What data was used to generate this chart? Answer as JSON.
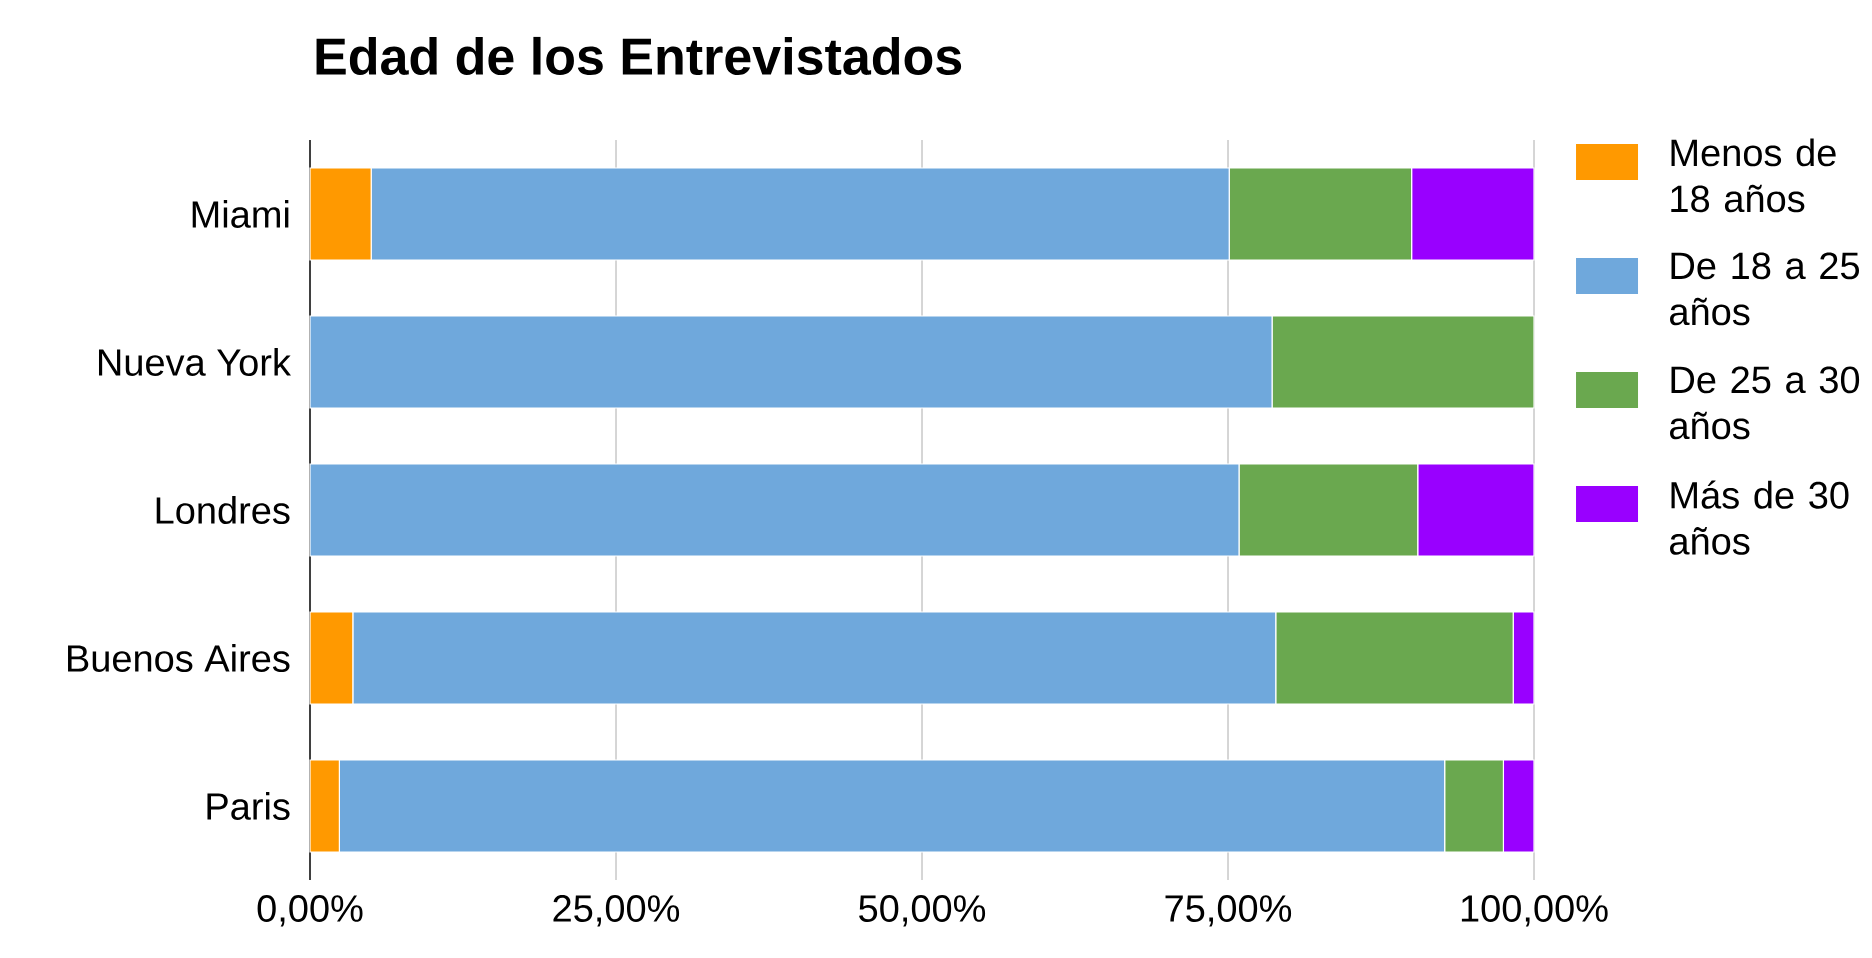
{
  "chart_data": {
    "type": "bar",
    "orientation": "horizontal",
    "stacked": true,
    "title": "Edad de los Entrevistados",
    "categories": [
      "Miami",
      "Nueva York",
      "Londres",
      "Buenos Aires",
      "Paris"
    ],
    "series": [
      {
        "name": "Menos de 18 años",
        "color": "#ff9900",
        "values": [
          5,
          0,
          0,
          3.5,
          2.4
        ]
      },
      {
        "name": "De 18 a 25 años",
        "color": "#6fa8dc",
        "values": [
          70.1,
          78.6,
          75.9,
          75.4,
          90.3
        ]
      },
      {
        "name": "De 25 a 30 años",
        "color": "#6aa84f",
        "values": [
          14.9,
          21.4,
          14.6,
          19.4,
          4.8
        ]
      },
      {
        "name": "Más de 30 años",
        "color": "#9900ff",
        "values": [
          10,
          0,
          9.5,
          1.7,
          2.5
        ]
      }
    ],
    "xlim": [
      0,
      100
    ],
    "xticks": [
      {
        "value": 0,
        "label": "0,00%"
      },
      {
        "value": 25,
        "label": "25,00%"
      },
      {
        "value": 50,
        "label": "50,00%"
      },
      {
        "value": 75,
        "label": "75,00%"
      },
      {
        "value": 100,
        "label": "100,00%"
      }
    ],
    "grid": "x",
    "legend": "right"
  }
}
